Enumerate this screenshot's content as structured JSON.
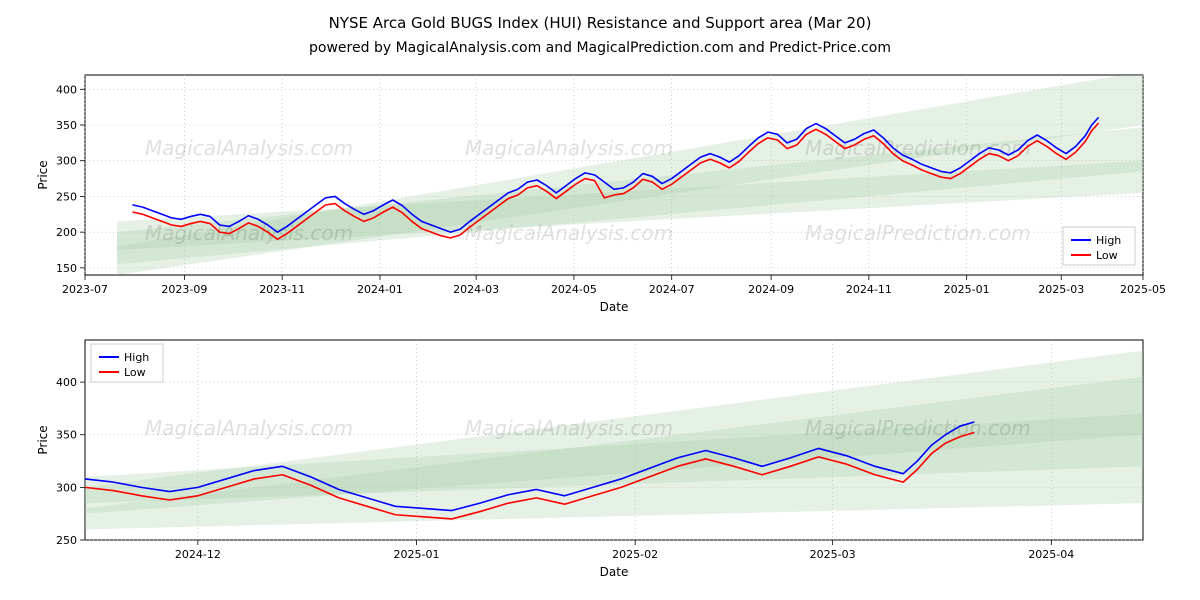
{
  "titles": {
    "main": "NYSE Arca Gold BUGS Index (HUI) Resistance and Support area (Mar 20)",
    "sub": "powered by MagicalAnalysis.com and MagicalPrediction.com and Predict-Price.com"
  },
  "watermarks": {
    "text_ma": "MagicalAnalysis.com",
    "text_mp": "MagicalPrediction.com"
  },
  "colors": {
    "high": "#0000ff",
    "low": "#ff0000",
    "zone": "#a4cba4",
    "grid": "#b0b0b0",
    "bg": "#ffffff",
    "spine": "#000000",
    "text": "#000000"
  },
  "font": {
    "title": 15,
    "subtitle": 14,
    "axis_label": 12,
    "tick": 11,
    "watermark": 20
  },
  "legend_labels": {
    "high": "High",
    "low": "Low"
  },
  "top_chart": {
    "type": "line",
    "xlabel": "Date",
    "ylabel": "Price",
    "xlim": [
      0,
      660
    ],
    "ylim": [
      140,
      420
    ],
    "yticks": [
      150,
      200,
      250,
      300,
      350,
      400
    ],
    "xticks": [
      {
        "v": 0,
        "label": "2023-07"
      },
      {
        "v": 62,
        "label": "2023-09"
      },
      {
        "v": 123,
        "label": "2023-11"
      },
      {
        "v": 184,
        "label": "2024-01"
      },
      {
        "v": 244,
        "label": "2024-03"
      },
      {
        "v": 305,
        "label": "2024-05"
      },
      {
        "v": 366,
        "label": "2024-07"
      },
      {
        "v": 428,
        "label": "2024-09"
      },
      {
        "v": 489,
        "label": "2024-11"
      },
      {
        "v": 550,
        "label": "2025-01"
      },
      {
        "v": 609,
        "label": "2025-03"
      },
      {
        "v": 660,
        "label": "2025-05"
      }
    ],
    "zones": [
      {
        "poly": [
          [
            20,
            200
          ],
          [
            660,
            347
          ],
          [
            660,
            285
          ],
          [
            20,
            155
          ]
        ]
      },
      {
        "poly": [
          [
            20,
            180
          ],
          [
            660,
            425
          ],
          [
            660,
            350
          ],
          [
            20,
            140
          ]
        ]
      },
      {
        "poly": [
          [
            20,
            215
          ],
          [
            660,
            300
          ],
          [
            660,
            255
          ],
          [
            20,
            175
          ]
        ]
      }
    ],
    "series_high": [
      [
        30,
        238
      ],
      [
        36,
        235
      ],
      [
        42,
        230
      ],
      [
        48,
        225
      ],
      [
        54,
        220
      ],
      [
        60,
        218
      ],
      [
        66,
        222
      ],
      [
        72,
        225
      ],
      [
        78,
        222
      ],
      [
        84,
        210
      ],
      [
        90,
        208
      ],
      [
        96,
        215
      ],
      [
        102,
        223
      ],
      [
        108,
        218
      ],
      [
        114,
        210
      ],
      [
        120,
        200
      ],
      [
        126,
        208
      ],
      [
        132,
        218
      ],
      [
        138,
        228
      ],
      [
        144,
        238
      ],
      [
        150,
        248
      ],
      [
        156,
        250
      ],
      [
        162,
        240
      ],
      [
        168,
        232
      ],
      [
        174,
        225
      ],
      [
        180,
        230
      ],
      [
        186,
        238
      ],
      [
        192,
        245
      ],
      [
        198,
        237
      ],
      [
        204,
        225
      ],
      [
        210,
        215
      ],
      [
        216,
        210
      ],
      [
        222,
        205
      ],
      [
        228,
        200
      ],
      [
        234,
        204
      ],
      [
        240,
        215
      ],
      [
        246,
        225
      ],
      [
        252,
        235
      ],
      [
        258,
        245
      ],
      [
        264,
        255
      ],
      [
        270,
        260
      ],
      [
        276,
        270
      ],
      [
        282,
        273
      ],
      [
        288,
        265
      ],
      [
        294,
        255
      ],
      [
        300,
        265
      ],
      [
        306,
        275
      ],
      [
        312,
        283
      ],
      [
        318,
        280
      ],
      [
        324,
        270
      ],
      [
        330,
        260
      ],
      [
        336,
        262
      ],
      [
        342,
        270
      ],
      [
        348,
        282
      ],
      [
        354,
        278
      ],
      [
        360,
        268
      ],
      [
        366,
        275
      ],
      [
        372,
        285
      ],
      [
        378,
        295
      ],
      [
        384,
        305
      ],
      [
        390,
        310
      ],
      [
        396,
        305
      ],
      [
        402,
        298
      ],
      [
        408,
        307
      ],
      [
        414,
        320
      ],
      [
        420,
        332
      ],
      [
        426,
        340
      ],
      [
        432,
        337
      ],
      [
        438,
        325
      ],
      [
        444,
        330
      ],
      [
        450,
        345
      ],
      [
        456,
        352
      ],
      [
        462,
        345
      ],
      [
        468,
        335
      ],
      [
        474,
        325
      ],
      [
        480,
        330
      ],
      [
        486,
        338
      ],
      [
        492,
        343
      ],
      [
        498,
        332
      ],
      [
        504,
        318
      ],
      [
        510,
        308
      ],
      [
        516,
        302
      ],
      [
        522,
        295
      ],
      [
        528,
        290
      ],
      [
        534,
        285
      ],
      [
        540,
        283
      ],
      [
        546,
        290
      ],
      [
        552,
        300
      ],
      [
        558,
        310
      ],
      [
        564,
        318
      ],
      [
        570,
        315
      ],
      [
        576,
        308
      ],
      [
        582,
        315
      ],
      [
        588,
        328
      ],
      [
        594,
        336
      ],
      [
        600,
        328
      ],
      [
        606,
        318
      ],
      [
        612,
        310
      ],
      [
        618,
        320
      ],
      [
        624,
        335
      ],
      [
        628,
        350
      ],
      [
        632,
        360
      ]
    ],
    "series_low": [
      [
        30,
        228
      ],
      [
        36,
        225
      ],
      [
        42,
        220
      ],
      [
        48,
        215
      ],
      [
        54,
        210
      ],
      [
        60,
        208
      ],
      [
        66,
        212
      ],
      [
        72,
        215
      ],
      [
        78,
        212
      ],
      [
        84,
        200
      ],
      [
        90,
        198
      ],
      [
        96,
        205
      ],
      [
        102,
        213
      ],
      [
        108,
        208
      ],
      [
        114,
        200
      ],
      [
        120,
        190
      ],
      [
        126,
        198
      ],
      [
        132,
        208
      ],
      [
        138,
        218
      ],
      [
        144,
        228
      ],
      [
        150,
        238
      ],
      [
        156,
        240
      ],
      [
        162,
        230
      ],
      [
        168,
        222
      ],
      [
        174,
        215
      ],
      [
        180,
        220
      ],
      [
        186,
        228
      ],
      [
        192,
        235
      ],
      [
        198,
        227
      ],
      [
        204,
        215
      ],
      [
        210,
        205
      ],
      [
        216,
        200
      ],
      [
        222,
        195
      ],
      [
        228,
        192
      ],
      [
        234,
        196
      ],
      [
        240,
        207
      ],
      [
        246,
        217
      ],
      [
        252,
        227
      ],
      [
        258,
        237
      ],
      [
        264,
        247
      ],
      [
        270,
        252
      ],
      [
        276,
        262
      ],
      [
        282,
        265
      ],
      [
        288,
        257
      ],
      [
        294,
        247
      ],
      [
        300,
        257
      ],
      [
        306,
        267
      ],
      [
        312,
        275
      ],
      [
        318,
        272
      ],
      [
        324,
        248
      ],
      [
        330,
        252
      ],
      [
        336,
        254
      ],
      [
        342,
        262
      ],
      [
        348,
        274
      ],
      [
        354,
        270
      ],
      [
        360,
        260
      ],
      [
        366,
        267
      ],
      [
        372,
        277
      ],
      [
        378,
        287
      ],
      [
        384,
        297
      ],
      [
        390,
        302
      ],
      [
        396,
        297
      ],
      [
        402,
        290
      ],
      [
        408,
        299
      ],
      [
        414,
        312
      ],
      [
        420,
        324
      ],
      [
        426,
        332
      ],
      [
        432,
        329
      ],
      [
        438,
        317
      ],
      [
        444,
        322
      ],
      [
        450,
        337
      ],
      [
        456,
        344
      ],
      [
        462,
        337
      ],
      [
        468,
        327
      ],
      [
        474,
        317
      ],
      [
        480,
        322
      ],
      [
        486,
        330
      ],
      [
        492,
        335
      ],
      [
        498,
        324
      ],
      [
        504,
        310
      ],
      [
        510,
        300
      ],
      [
        516,
        294
      ],
      [
        522,
        287
      ],
      [
        528,
        282
      ],
      [
        534,
        277
      ],
      [
        540,
        275
      ],
      [
        546,
        282
      ],
      [
        552,
        292
      ],
      [
        558,
        302
      ],
      [
        564,
        310
      ],
      [
        570,
        307
      ],
      [
        576,
        300
      ],
      [
        582,
        307
      ],
      [
        588,
        320
      ],
      [
        594,
        328
      ],
      [
        600,
        320
      ],
      [
        606,
        310
      ],
      [
        612,
        302
      ],
      [
        618,
        312
      ],
      [
        624,
        327
      ],
      [
        628,
        342
      ],
      [
        632,
        352
      ]
    ]
  },
  "bottom_chart": {
    "type": "line",
    "xlabel": "Date",
    "ylabel": "Price",
    "xlim": [
      0,
      150
    ],
    "ylim": [
      250,
      440
    ],
    "yticks": [
      250,
      300,
      350,
      400
    ],
    "xticks": [
      {
        "v": 16,
        "label": "2024-12"
      },
      {
        "v": 47,
        "label": "2025-01"
      },
      {
        "v": 78,
        "label": "2025-02"
      },
      {
        "v": 106,
        "label": "2025-03"
      },
      {
        "v": 137,
        "label": "2025-04"
      }
    ],
    "zones": [
      {
        "poly": [
          [
            0,
            280
          ],
          [
            150,
            405
          ],
          [
            150,
            285
          ],
          [
            0,
            260
          ]
        ]
      },
      {
        "poly": [
          [
            0,
            300
          ],
          [
            150,
            430
          ],
          [
            150,
            350
          ],
          [
            0,
            275
          ]
        ]
      },
      {
        "poly": [
          [
            0,
            310
          ],
          [
            150,
            370
          ],
          [
            150,
            320
          ],
          [
            0,
            285
          ]
        ]
      }
    ],
    "series_high": [
      [
        0,
        308
      ],
      [
        4,
        305
      ],
      [
        8,
        300
      ],
      [
        12,
        296
      ],
      [
        16,
        300
      ],
      [
        20,
        308
      ],
      [
        24,
        316
      ],
      [
        28,
        320
      ],
      [
        32,
        310
      ],
      [
        36,
        298
      ],
      [
        40,
        290
      ],
      [
        44,
        282
      ],
      [
        48,
        280
      ],
      [
        52,
        278
      ],
      [
        56,
        285
      ],
      [
        60,
        293
      ],
      [
        64,
        298
      ],
      [
        68,
        292
      ],
      [
        72,
        300
      ],
      [
        76,
        308
      ],
      [
        80,
        318
      ],
      [
        84,
        328
      ],
      [
        88,
        335
      ],
      [
        92,
        328
      ],
      [
        96,
        320
      ],
      [
        100,
        328
      ],
      [
        104,
        337
      ],
      [
        108,
        330
      ],
      [
        112,
        320
      ],
      [
        116,
        313
      ],
      [
        118,
        325
      ],
      [
        120,
        340
      ],
      [
        122,
        350
      ],
      [
        124,
        358
      ],
      [
        126,
        362
      ]
    ],
    "series_low": [
      [
        0,
        300
      ],
      [
        4,
        297
      ],
      [
        8,
        292
      ],
      [
        12,
        288
      ],
      [
        16,
        292
      ],
      [
        20,
        300
      ],
      [
        24,
        308
      ],
      [
        28,
        312
      ],
      [
        32,
        302
      ],
      [
        36,
        290
      ],
      [
        40,
        282
      ],
      [
        44,
        274
      ],
      [
        48,
        272
      ],
      [
        52,
        270
      ],
      [
        56,
        277
      ],
      [
        60,
        285
      ],
      [
        64,
        290
      ],
      [
        68,
        284
      ],
      [
        72,
        292
      ],
      [
        76,
        300
      ],
      [
        80,
        310
      ],
      [
        84,
        320
      ],
      [
        88,
        327
      ],
      [
        92,
        320
      ],
      [
        96,
        312
      ],
      [
        100,
        320
      ],
      [
        104,
        329
      ],
      [
        108,
        322
      ],
      [
        112,
        312
      ],
      [
        116,
        305
      ],
      [
        118,
        317
      ],
      [
        120,
        332
      ],
      [
        122,
        342
      ],
      [
        124,
        348
      ],
      [
        126,
        352
      ]
    ]
  }
}
